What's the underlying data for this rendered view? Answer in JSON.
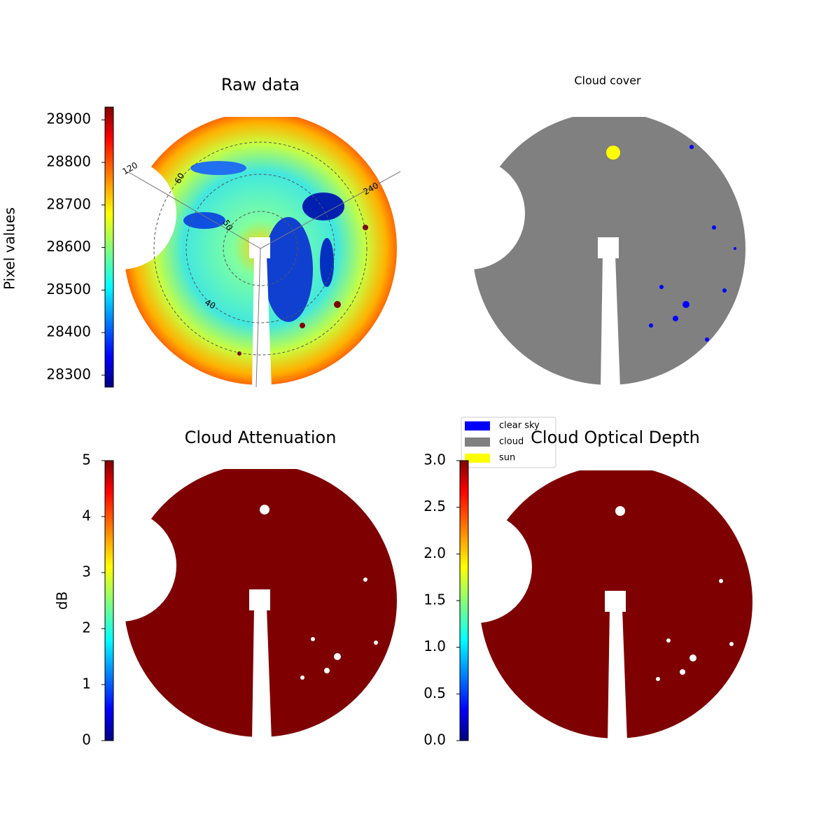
{
  "chart_data": [
    {
      "type": "image",
      "title": "Raw data",
      "ylabel": "Pixel values",
      "ylim": [
        28272,
        28930
      ],
      "yticks": [
        28300,
        28400,
        28500,
        28600,
        28700,
        28800,
        28900
      ],
      "annotations": [
        "120",
        "60",
        "240",
        "50",
        "40"
      ]
    },
    {
      "type": "categorical-image",
      "title": "Cloud cover",
      "legend_entries": [
        {
          "name": "clear sky",
          "color": "#0000ff"
        },
        {
          "name": "cloud",
          "color": "#808080"
        },
        {
          "name": "sun",
          "color": "#ffff00"
        }
      ]
    },
    {
      "type": "image",
      "title": "Cloud Attenuation",
      "ylabel": "dB",
      "ylim": [
        0,
        5
      ],
      "yticks": [
        0,
        1,
        2,
        3,
        4,
        5
      ]
    },
    {
      "type": "image",
      "title": "Cloud Optical Depth",
      "ylim": [
        0,
        3
      ],
      "yticks": [
        {
          "value": 0,
          "label": "0.0"
        },
        {
          "value": 0.5,
          "label": "0.5"
        },
        {
          "value": 1,
          "label": "1.0"
        },
        {
          "value": 1.5,
          "label": "1.5"
        },
        {
          "value": 2,
          "label": "2.0"
        },
        {
          "value": 2.5,
          "label": "2.5"
        },
        {
          "value": 3,
          "label": "3.0"
        }
      ]
    }
  ]
}
